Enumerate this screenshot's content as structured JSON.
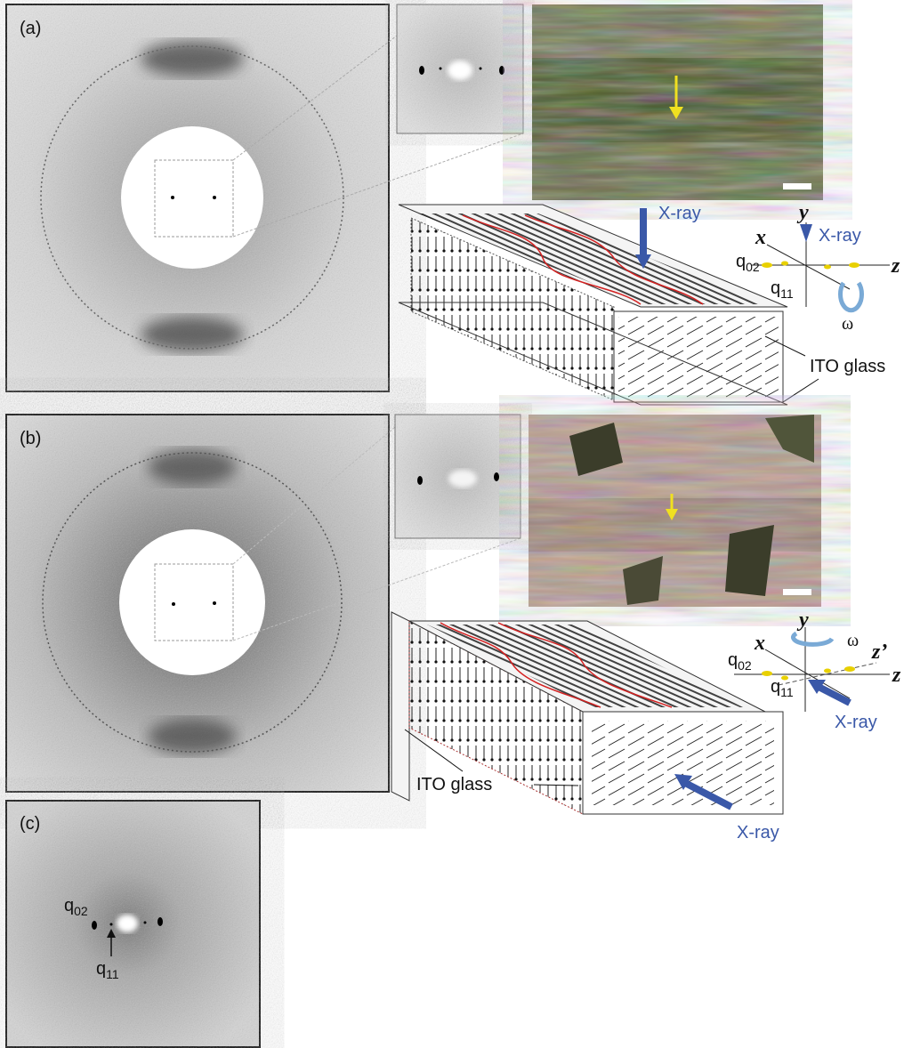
{
  "panel_a": {
    "label": "(a)",
    "beam_label": "X-ray",
    "axes": {
      "y": "y",
      "x": "x",
      "z": "z",
      "beam": "X-ray",
      "q02": {
        "base": "q",
        "sub": "02"
      },
      "q11": {
        "base": "q",
        "sub": "11"
      },
      "rotation": "ω"
    },
    "substrate_label": "ITO glass"
  },
  "panel_b": {
    "label": "(b)",
    "axes": {
      "y": "y",
      "rotation": "ω",
      "x": "x",
      "z_tilted": "z’",
      "z": "z",
      "q02": {
        "base": "q",
        "sub": "02"
      },
      "q11": {
        "base": "q",
        "sub": "11"
      },
      "beam": "X-ray"
    },
    "substrate_label": "ITO glass",
    "beam_label": "X-ray"
  },
  "panel_c": {
    "label": "(c)",
    "q02": {
      "base": "q",
      "sub": "02"
    },
    "q11": {
      "base": "q",
      "sub": "11"
    }
  }
}
